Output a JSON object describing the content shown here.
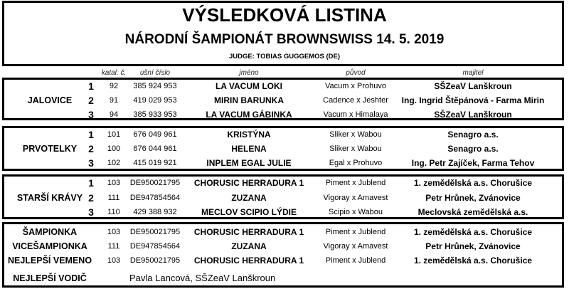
{
  "header": {
    "title": "VÝSLEDKOVÁ LISTINA",
    "subtitle": "NÁRODNÍ ŠAMPIONÁT BROWNSWISS 14. 5. 2019",
    "judge": "JUDGE: TOBIAS GUGGEMOS (DE)"
  },
  "columns": {
    "katal": "katal. č.",
    "usni": "ušní číslo",
    "jmeno": "jméno",
    "puvod": "původ",
    "majitel": "majitel"
  },
  "groups": [
    {
      "category": "JALOVICE",
      "rows": [
        {
          "rank": "1",
          "katal": "92",
          "usni": "385 924 953",
          "jmeno": "LA VACUM LOKI",
          "puvod": "Vacum x Prohuvo",
          "majitel": "SŠZeaV Lanškroun"
        },
        {
          "rank": "2",
          "katal": "91",
          "usni": "419 029 953",
          "jmeno": "MIRIN BARUNKA",
          "puvod": "Cadence x Jeshter",
          "majitel": "Ing. Ingrid Štěpánová - Farma Mirin"
        },
        {
          "rank": "3",
          "katal": "94",
          "usni": "385 933 953",
          "jmeno": "LA VACUM GÁBINKA",
          "puvod": "Vacum x Himalaya",
          "majitel": "SŠZeaV Lanškroun"
        }
      ]
    },
    {
      "category": "PRVOTELKY",
      "rows": [
        {
          "rank": "1",
          "katal": "101",
          "usni": "676 049 961",
          "jmeno": "KRISTÝNA",
          "puvod": "Sliker x Wabou",
          "majitel": "Senagro a.s."
        },
        {
          "rank": "2",
          "katal": "100",
          "usni": "676 044 961",
          "jmeno": "HELENA",
          "puvod": "Sliker x Wabou",
          "majitel": "Senagro a.s."
        },
        {
          "rank": "3",
          "katal": "102",
          "usni": "415 019 921",
          "jmeno": "INPLEM EGAL JULIE",
          "puvod": "Egal x Prohuvo",
          "majitel": "Ing. Petr Zajíček, Farma Tehov"
        }
      ]
    },
    {
      "category": "STARŠÍ KRÁVY",
      "rows": [
        {
          "rank": "1",
          "katal": "103",
          "usni": "DE950021795",
          "jmeno": "CHORUSIC HERRADURA 1",
          "puvod": "Piment x Jublend",
          "majitel": "1. zemědělská a.s. Chorušice"
        },
        {
          "rank": "2",
          "katal": "111",
          "usni": "DE947854564",
          "jmeno": "ZUZANA",
          "puvod": "Vigoray x Amavest",
          "majitel": "Petr Hrůnek, Zvánovice"
        },
        {
          "rank": "3",
          "katal": "110",
          "usni": "429 388 932",
          "jmeno": "MECLOV SCIPIO LÝDIE",
          "puvod": "Scipio x Wabou",
          "majitel": "Meclovská zemědělská a.s."
        }
      ]
    }
  ],
  "awards": [
    {
      "title": "ŠAMPIONKA",
      "katal": "103",
      "usni": "DE950021795",
      "jmeno": "CHORUSIC HERRADURA 1",
      "puvod": "Piment x Jublend",
      "majitel": "1. zemědělská a.s. Chorušice"
    },
    {
      "title": "VICEŠAMPIONKA",
      "katal": "111",
      "usni": "DE947854564",
      "jmeno": "ZUZANA",
      "puvod": "Vigoray x Amavest",
      "majitel": "Petr Hrůnek, Zvánovice"
    },
    {
      "title": "NEJLEPŠÍ VEMENO",
      "katal": "103",
      "usni": "DE950021795",
      "jmeno": "CHORUSIC HERRADURA 1",
      "puvod": "Piment x Jublend",
      "majitel": "1. zemědělská a.s. Chorušice"
    }
  ],
  "best_handler": {
    "title": "NEJLEPŠÍ VODIČ",
    "name": "Pavla Lancová, SŠZeaV Lanškroun"
  }
}
